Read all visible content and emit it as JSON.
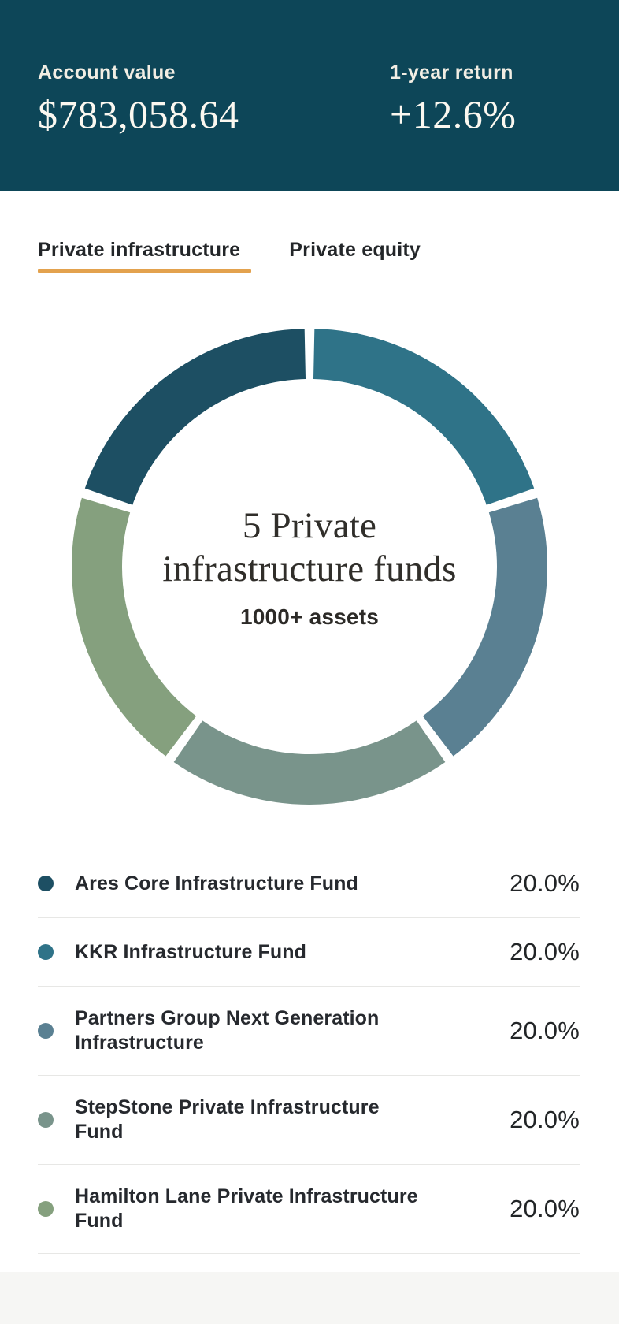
{
  "page": {
    "background": "#ffffff"
  },
  "header": {
    "background": "#0d4658",
    "account_value_label": "Account value",
    "account_value": "$783,058.64",
    "one_year_return_label": "1-year return",
    "one_year_return_value": "+12.6%"
  },
  "tabs": {
    "active_underline_color": "#e3a24e",
    "items": [
      {
        "label": "Private infrastructure",
        "active": true
      },
      {
        "label": "Private equity",
        "active": false
      }
    ]
  },
  "chart_data": {
    "type": "pie",
    "donut": true,
    "start_angle_deg": -72,
    "gap_deg": 2.4,
    "categories": [
      "Ares Core Infrastructure Fund",
      "KKR Infrastructure Fund",
      "Partners Group Next Generation Infrastructure",
      "StepStone Private Infrastructure Fund",
      "Hamilton Lane Private Infrastructure Fund"
    ],
    "values": [
      20.0,
      20.0,
      20.0,
      20.0,
      20.0
    ],
    "percent_labels": [
      "20.0%",
      "20.0%",
      "20.0%",
      "20.0%",
      "20.0%"
    ],
    "colors": [
      "#1d4f63",
      "#2f7388",
      "#5a8092",
      "#79948b",
      "#85a07e"
    ],
    "center_label": {
      "title_line1": "5 Private",
      "title_line2": "infrastructure funds",
      "subtitle": "1000+ assets"
    },
    "legend_position": "bottom"
  },
  "legend": {
    "divider_color": "#e7e7e5",
    "items": [
      {
        "name": "Ares Core Infrastructure Fund",
        "percent": "20.0%",
        "color": "#1d4f63"
      },
      {
        "name": "KKR Infrastructure Fund",
        "percent": "20.0%",
        "color": "#2f7388"
      },
      {
        "name": "Partners Group Next Generation Infrastructure",
        "percent": "20.0%",
        "color": "#5a8092"
      },
      {
        "name": "StepStone Private Infrastructure Fund",
        "percent": "20.0%",
        "color": "#79948b"
      },
      {
        "name": "Hamilton Lane Private Infrastructure Fund",
        "percent": "20.0%",
        "color": "#85a07e"
      }
    ]
  },
  "footer": {
    "band_color": "#f6f6f4"
  }
}
